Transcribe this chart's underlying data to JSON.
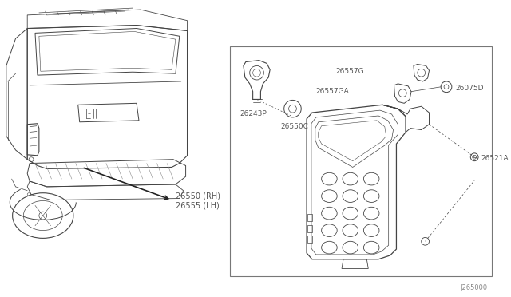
{
  "bg_color": "#ffffff",
  "lc": "#444444",
  "llc": "#888888",
  "tc": "#555555",
  "diagram_ref": "J265000",
  "labels": {
    "26550_RH_LH": "26550 (RH)\n26555 (LH)",
    "26243P": "26243P",
    "26550C": "26550C",
    "26557G": "26557G",
    "26557GA": "26557GA",
    "26075D": "26075D",
    "26521A": "26521A"
  }
}
